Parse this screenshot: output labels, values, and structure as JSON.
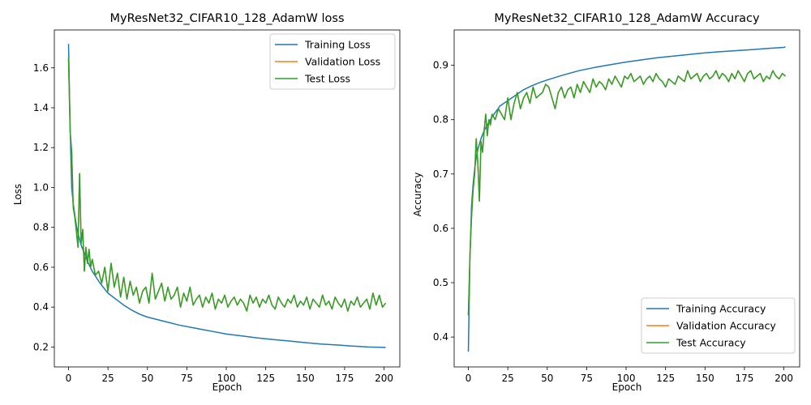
{
  "chart_data": [
    {
      "type": "line",
      "title": "MyResNet32_CIFAR10_128_AdamW loss",
      "xlabel": "Epoch",
      "ylabel": "Loss",
      "xlim": [
        -9,
        210
      ],
      "ylim": [
        0.1,
        1.79
      ],
      "xticks": [
        0,
        25,
        50,
        75,
        100,
        125,
        150,
        175,
        200
      ],
      "yticks": [
        0.2,
        0.4,
        0.6,
        0.8,
        1.0,
        1.2,
        1.4,
        1.6
      ],
      "ytick_labels": [
        "0.2",
        "0.4",
        "0.6",
        "0.8",
        "1.0",
        "1.2",
        "1.4",
        "1.6"
      ],
      "grid": false,
      "legend_position": "upper right",
      "series": [
        {
          "name": "Training Loss",
          "color": "#1f77b4",
          "x": [
            0,
            1,
            2,
            3,
            4,
            5,
            6,
            8,
            10,
            12,
            15,
            20,
            25,
            30,
            35,
            40,
            45,
            50,
            60,
            70,
            80,
            90,
            100,
            110,
            120,
            130,
            140,
            150,
            160,
            170,
            180,
            190,
            200,
            201
          ],
          "y": [
            1.72,
            1.3,
            1.0,
            0.92,
            0.86,
            0.81,
            0.77,
            0.71,
            0.67,
            0.63,
            0.58,
            0.52,
            0.47,
            0.44,
            0.41,
            0.385,
            0.365,
            0.35,
            0.33,
            0.31,
            0.295,
            0.28,
            0.265,
            0.255,
            0.245,
            0.237,
            0.23,
            0.222,
            0.215,
            0.21,
            0.205,
            0.2,
            0.198,
            0.197
          ]
        },
        {
          "name": "Validation Loss",
          "color": "#ff7f0e",
          "x": [
            0,
            1,
            2,
            3,
            4,
            5,
            6,
            7,
            8,
            9,
            10,
            11,
            12,
            13,
            14,
            15,
            17,
            19,
            21,
            23,
            25,
            27,
            29,
            31,
            33,
            35,
            37,
            39,
            41,
            43,
            45,
            47,
            49,
            51,
            53,
            55,
            57,
            59,
            61,
            63,
            65,
            67,
            69,
            71,
            73,
            75,
            77,
            79,
            81,
            83,
            85,
            87,
            89,
            91,
            93,
            95,
            97,
            99,
            101,
            103,
            105,
            107,
            109,
            111,
            113,
            115,
            117,
            119,
            121,
            123,
            125,
            127,
            129,
            131,
            133,
            135,
            137,
            139,
            141,
            143,
            145,
            147,
            149,
            151,
            153,
            155,
            157,
            159,
            161,
            163,
            165,
            167,
            169,
            171,
            173,
            175,
            177,
            179,
            181,
            183,
            185,
            187,
            189,
            191,
            193,
            195,
            197,
            199,
            201
          ],
          "y": [
            1.65,
            1.28,
            1.18,
            0.9,
            0.85,
            0.78,
            0.7,
            1.07,
            0.72,
            0.79,
            0.58,
            0.7,
            0.62,
            0.69,
            0.6,
            0.64,
            0.56,
            0.58,
            0.52,
            0.6,
            0.48,
            0.62,
            0.5,
            0.57,
            0.45,
            0.55,
            0.44,
            0.53,
            0.46,
            0.5,
            0.42,
            0.48,
            0.5,
            0.42,
            0.57,
            0.44,
            0.48,
            0.52,
            0.43,
            0.5,
            0.44,
            0.46,
            0.5,
            0.4,
            0.47,
            0.43,
            0.5,
            0.41,
            0.44,
            0.46,
            0.4,
            0.45,
            0.42,
            0.47,
            0.39,
            0.44,
            0.42,
            0.46,
            0.4,
            0.43,
            0.45,
            0.41,
            0.44,
            0.42,
            0.38,
            0.46,
            0.42,
            0.45,
            0.4,
            0.44,
            0.42,
            0.46,
            0.41,
            0.39,
            0.45,
            0.42,
            0.4,
            0.44,
            0.42,
            0.46,
            0.4,
            0.43,
            0.41,
            0.45,
            0.39,
            0.44,
            0.42,
            0.4,
            0.46,
            0.41,
            0.43,
            0.39,
            0.45,
            0.42,
            0.4,
            0.44,
            0.38,
            0.43,
            0.41,
            0.45,
            0.4,
            0.42,
            0.44,
            0.39,
            0.47,
            0.41,
            0.46,
            0.4,
            0.42
          ]
        },
        {
          "name": "Test Loss",
          "color": "#2ca02c",
          "x": [
            0,
            1,
            2,
            3,
            4,
            5,
            6,
            7,
            8,
            9,
            10,
            11,
            12,
            13,
            14,
            15,
            17,
            19,
            21,
            23,
            25,
            27,
            29,
            31,
            33,
            35,
            37,
            39,
            41,
            43,
            45,
            47,
            49,
            51,
            53,
            55,
            57,
            59,
            61,
            63,
            65,
            67,
            69,
            71,
            73,
            75,
            77,
            79,
            81,
            83,
            85,
            87,
            89,
            91,
            93,
            95,
            97,
            99,
            101,
            103,
            105,
            107,
            109,
            111,
            113,
            115,
            117,
            119,
            121,
            123,
            125,
            127,
            129,
            131,
            133,
            135,
            137,
            139,
            141,
            143,
            145,
            147,
            149,
            151,
            153,
            155,
            157,
            159,
            161,
            163,
            165,
            167,
            169,
            171,
            173,
            175,
            177,
            179,
            181,
            183,
            185,
            187,
            189,
            191,
            193,
            195,
            197,
            199,
            201
          ],
          "y": [
            1.65,
            1.28,
            1.18,
            0.9,
            0.85,
            0.78,
            0.7,
            1.07,
            0.72,
            0.79,
            0.58,
            0.7,
            0.62,
            0.69,
            0.6,
            0.64,
            0.56,
            0.58,
            0.52,
            0.6,
            0.48,
            0.62,
            0.5,
            0.57,
            0.45,
            0.55,
            0.44,
            0.53,
            0.46,
            0.5,
            0.42,
            0.48,
            0.5,
            0.42,
            0.57,
            0.44,
            0.48,
            0.52,
            0.43,
            0.5,
            0.44,
            0.46,
            0.5,
            0.4,
            0.47,
            0.43,
            0.5,
            0.41,
            0.44,
            0.46,
            0.4,
            0.45,
            0.42,
            0.47,
            0.39,
            0.44,
            0.42,
            0.46,
            0.4,
            0.43,
            0.45,
            0.41,
            0.44,
            0.42,
            0.38,
            0.46,
            0.42,
            0.45,
            0.4,
            0.44,
            0.42,
            0.46,
            0.41,
            0.39,
            0.45,
            0.42,
            0.4,
            0.44,
            0.42,
            0.46,
            0.4,
            0.43,
            0.41,
            0.45,
            0.39,
            0.44,
            0.42,
            0.4,
            0.46,
            0.41,
            0.43,
            0.39,
            0.45,
            0.42,
            0.4,
            0.44,
            0.38,
            0.43,
            0.41,
            0.45,
            0.4,
            0.42,
            0.44,
            0.39,
            0.47,
            0.41,
            0.46,
            0.4,
            0.42
          ]
        }
      ]
    },
    {
      "type": "line",
      "title": "MyResNet32_CIFAR10_128_AdamW Accuracy",
      "xlabel": "Epoch",
      "ylabel": "Accuracy",
      "xlim": [
        -9,
        210
      ],
      "ylim": [
        0.345,
        0.965
      ],
      "xticks": [
        0,
        25,
        50,
        75,
        100,
        125,
        150,
        175,
        200
      ],
      "yticks": [
        0.4,
        0.5,
        0.6,
        0.7,
        0.8,
        0.9
      ],
      "ytick_labels": [
        "0.4",
        "0.5",
        "0.6",
        "0.7",
        "0.8",
        "0.9"
      ],
      "grid": false,
      "legend_position": "lower right",
      "series": [
        {
          "name": "Training Accuracy",
          "color": "#1f77b4",
          "x": [
            0,
            1,
            2,
            3,
            4,
            5,
            6,
            8,
            10,
            12,
            15,
            20,
            25,
            30,
            35,
            40,
            45,
            50,
            60,
            70,
            80,
            90,
            100,
            110,
            120,
            130,
            140,
            150,
            160,
            170,
            180,
            190,
            200,
            201
          ],
          "y": [
            0.373,
            0.55,
            0.64,
            0.68,
            0.71,
            0.73,
            0.745,
            0.765,
            0.78,
            0.79,
            0.805,
            0.825,
            0.835,
            0.845,
            0.855,
            0.862,
            0.868,
            0.873,
            0.882,
            0.89,
            0.896,
            0.901,
            0.906,
            0.91,
            0.914,
            0.917,
            0.92,
            0.923,
            0.925,
            0.927,
            0.929,
            0.931,
            0.933,
            0.934
          ]
        },
        {
          "name": "Validation Accuracy",
          "color": "#ff7f0e",
          "x": [
            0,
            1,
            2,
            3,
            4,
            5,
            6,
            7,
            8,
            9,
            10,
            11,
            12,
            13,
            14,
            15,
            17,
            19,
            21,
            23,
            25,
            27,
            29,
            31,
            33,
            35,
            37,
            39,
            41,
            43,
            45,
            47,
            49,
            51,
            53,
            55,
            57,
            59,
            61,
            63,
            65,
            67,
            69,
            71,
            73,
            75,
            77,
            79,
            81,
            83,
            85,
            87,
            89,
            91,
            93,
            95,
            97,
            99,
            101,
            103,
            105,
            107,
            109,
            111,
            113,
            115,
            117,
            119,
            121,
            123,
            125,
            127,
            129,
            131,
            133,
            135,
            137,
            139,
            141,
            143,
            145,
            147,
            149,
            151,
            153,
            155,
            157,
            159,
            161,
            163,
            165,
            167,
            169,
            171,
            173,
            175,
            177,
            179,
            181,
            183,
            185,
            187,
            189,
            191,
            193,
            195,
            197,
            199,
            201
          ],
          "y": [
            0.44,
            0.55,
            0.62,
            0.67,
            0.7,
            0.765,
            0.72,
            0.65,
            0.76,
            0.74,
            0.78,
            0.81,
            0.77,
            0.8,
            0.79,
            0.81,
            0.8,
            0.82,
            0.81,
            0.8,
            0.84,
            0.8,
            0.83,
            0.85,
            0.82,
            0.84,
            0.85,
            0.83,
            0.86,
            0.84,
            0.845,
            0.85,
            0.865,
            0.86,
            0.84,
            0.82,
            0.85,
            0.86,
            0.84,
            0.855,
            0.86,
            0.84,
            0.865,
            0.85,
            0.87,
            0.86,
            0.85,
            0.875,
            0.86,
            0.87,
            0.865,
            0.855,
            0.875,
            0.865,
            0.88,
            0.87,
            0.86,
            0.88,
            0.875,
            0.885,
            0.87,
            0.875,
            0.88,
            0.865,
            0.875,
            0.88,
            0.87,
            0.885,
            0.875,
            0.87,
            0.86,
            0.875,
            0.87,
            0.865,
            0.88,
            0.875,
            0.87,
            0.89,
            0.875,
            0.88,
            0.885,
            0.87,
            0.88,
            0.885,
            0.875,
            0.88,
            0.89,
            0.875,
            0.885,
            0.88,
            0.87,
            0.885,
            0.875,
            0.89,
            0.88,
            0.87,
            0.885,
            0.89,
            0.875,
            0.88,
            0.885,
            0.87,
            0.88,
            0.875,
            0.89,
            0.88,
            0.875,
            0.885,
            0.88
          ]
        },
        {
          "name": "Test Accuracy",
          "color": "#2ca02c",
          "x": [
            0,
            1,
            2,
            3,
            4,
            5,
            6,
            7,
            8,
            9,
            10,
            11,
            12,
            13,
            14,
            15,
            17,
            19,
            21,
            23,
            25,
            27,
            29,
            31,
            33,
            35,
            37,
            39,
            41,
            43,
            45,
            47,
            49,
            51,
            53,
            55,
            57,
            59,
            61,
            63,
            65,
            67,
            69,
            71,
            73,
            75,
            77,
            79,
            81,
            83,
            85,
            87,
            89,
            91,
            93,
            95,
            97,
            99,
            101,
            103,
            105,
            107,
            109,
            111,
            113,
            115,
            117,
            119,
            121,
            123,
            125,
            127,
            129,
            131,
            133,
            135,
            137,
            139,
            141,
            143,
            145,
            147,
            149,
            151,
            153,
            155,
            157,
            159,
            161,
            163,
            165,
            167,
            169,
            171,
            173,
            175,
            177,
            179,
            181,
            183,
            185,
            187,
            189,
            191,
            193,
            195,
            197,
            199,
            201
          ],
          "y": [
            0.44,
            0.55,
            0.62,
            0.67,
            0.7,
            0.765,
            0.72,
            0.65,
            0.76,
            0.74,
            0.78,
            0.81,
            0.77,
            0.8,
            0.79,
            0.81,
            0.8,
            0.82,
            0.81,
            0.8,
            0.84,
            0.8,
            0.83,
            0.85,
            0.82,
            0.84,
            0.85,
            0.83,
            0.86,
            0.84,
            0.845,
            0.85,
            0.865,
            0.86,
            0.84,
            0.82,
            0.85,
            0.86,
            0.84,
            0.855,
            0.86,
            0.84,
            0.865,
            0.85,
            0.87,
            0.86,
            0.85,
            0.875,
            0.86,
            0.87,
            0.865,
            0.855,
            0.875,
            0.865,
            0.88,
            0.87,
            0.86,
            0.88,
            0.875,
            0.885,
            0.87,
            0.875,
            0.88,
            0.865,
            0.875,
            0.88,
            0.87,
            0.885,
            0.875,
            0.87,
            0.86,
            0.875,
            0.87,
            0.865,
            0.88,
            0.875,
            0.87,
            0.89,
            0.875,
            0.88,
            0.885,
            0.87,
            0.88,
            0.885,
            0.875,
            0.88,
            0.89,
            0.875,
            0.885,
            0.88,
            0.87,
            0.885,
            0.875,
            0.89,
            0.88,
            0.87,
            0.885,
            0.89,
            0.875,
            0.88,
            0.885,
            0.87,
            0.88,
            0.875,
            0.89,
            0.88,
            0.875,
            0.885,
            0.88
          ]
        }
      ]
    }
  ]
}
